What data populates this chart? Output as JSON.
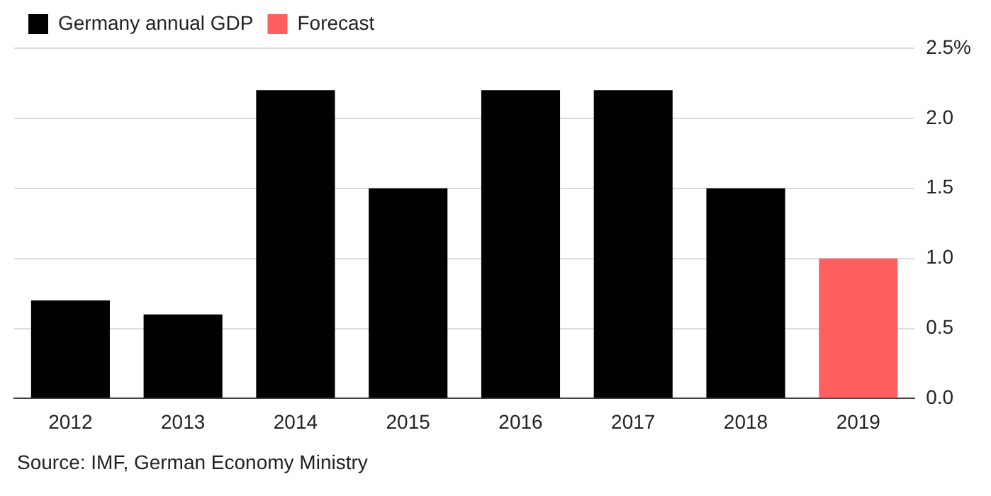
{
  "chart_data": {
    "type": "bar",
    "stacked": true,
    "categories": [
      "2012",
      "2013",
      "2014",
      "2015",
      "2016",
      "2017",
      "2018",
      "2019"
    ],
    "series": [
      {
        "name": "Germany annual GDP",
        "color": "#000000",
        "values": [
          0.7,
          0.6,
          2.2,
          1.5,
          2.2,
          2.2,
          1.5,
          null
        ]
      },
      {
        "name": "Forecast",
        "color": "#ff5f5f",
        "values": [
          null,
          null,
          null,
          null,
          null,
          null,
          null,
          1.0
        ]
      }
    ],
    "ylim": [
      0,
      2.5
    ],
    "yticks": [
      {
        "value": 0,
        "label": "0.0"
      },
      {
        "value": 0.5,
        "label": "0.5"
      },
      {
        "value": 1,
        "label": "1.0"
      },
      {
        "value": 1.5,
        "label": "1.5"
      },
      {
        "value": 2,
        "label": "2.0"
      },
      {
        "value": 2.5,
        "label": "2.5%"
      }
    ],
    "grid": "y",
    "legend": "top left",
    "annotations": [
      "Source: IMF, German Economy Ministry"
    ]
  }
}
